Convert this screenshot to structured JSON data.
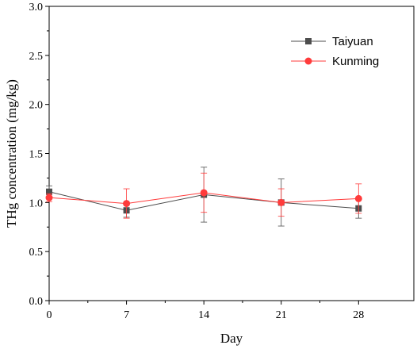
{
  "chart_data": {
    "type": "line",
    "title": "",
    "xlabel": "Day",
    "ylabel": "THg concentration (mg/kg)",
    "xlim": [
      0,
      33
    ],
    "ylim": [
      0.0,
      3.0
    ],
    "x_ticks": [
      0,
      7,
      14,
      21,
      28
    ],
    "x_tick_labels": [
      "0",
      "7",
      "14",
      "21",
      "28"
    ],
    "y_ticks": [
      0.0,
      0.5,
      1.0,
      1.5,
      2.0,
      2.5,
      3.0
    ],
    "y_tick_labels": [
      "0.0",
      "0.5",
      "1.0",
      "1.5",
      "2.0",
      "2.5",
      "3.0"
    ],
    "grid": false,
    "legend_position": "top-right",
    "series": [
      {
        "name": "Taiyuan",
        "color": "#4d4d4d",
        "marker": "square",
        "x": [
          0,
          7,
          14,
          21,
          28
        ],
        "y": [
          1.11,
          0.92,
          1.08,
          1.0,
          0.94
        ],
        "err": [
          0.06,
          0.07,
          0.28,
          0.24,
          0.1
        ]
      },
      {
        "name": "Kunming",
        "color": "#ff3b3b",
        "marker": "circle",
        "x": [
          0,
          7,
          14,
          21,
          28
        ],
        "y": [
          1.05,
          0.99,
          1.1,
          1.0,
          1.04
        ],
        "err": [
          0.04,
          0.15,
          0.2,
          0.14,
          0.15
        ]
      }
    ]
  }
}
